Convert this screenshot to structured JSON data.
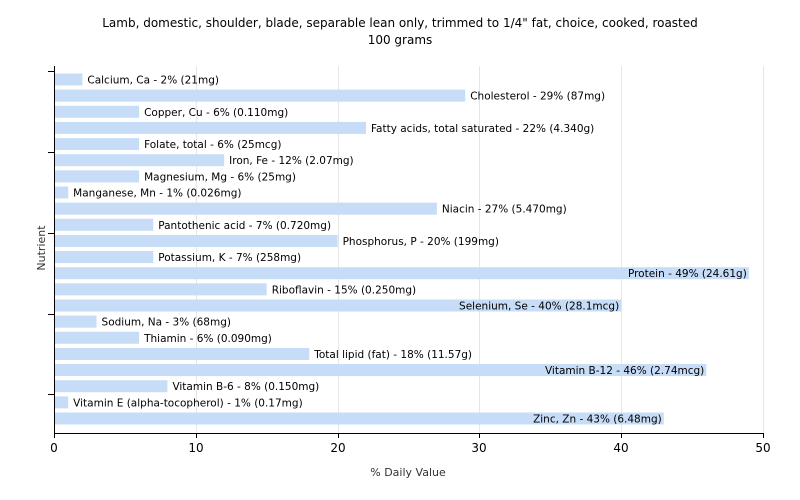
{
  "chart_data": {
    "type": "bar",
    "orientation": "horizontal",
    "title_lines": [
      "Lamb, domestic, shoulder, blade, separable lean only, trimmed to 1/4\" fat, choice, cooked, roasted",
      "100 grams"
    ],
    "xlabel": "% Daily Value",
    "ylabel": "Nutrient",
    "xlim": [
      0,
      50
    ],
    "xticks": [
      0,
      10,
      20,
      30,
      40,
      50
    ],
    "grid": true,
    "bar_color": "#c6dcf7",
    "grid_color": "#e6e6e6",
    "categories": [
      "Calcium, Ca",
      "Cholesterol",
      "Copper, Cu",
      "Fatty acids, total saturated",
      "Folate, total",
      "Iron, Fe",
      "Magnesium, Mg",
      "Manganese, Mn",
      "Niacin",
      "Pantothenic acid",
      "Phosphorus, P",
      "Potassium, K",
      "Protein",
      "Riboflavin",
      "Selenium, Se",
      "Sodium, Na",
      "Thiamin",
      "Total lipid (fat)",
      "Vitamin B-12",
      "Vitamin B-6",
      "Vitamin E (alpha-tocopherol)",
      "Zinc, Zn"
    ],
    "values": [
      2,
      29,
      6,
      22,
      6,
      12,
      6,
      1,
      27,
      7,
      20,
      7,
      49,
      15,
      40,
      3,
      6,
      18,
      46,
      8,
      1,
      43
    ],
    "labels": [
      "Calcium, Ca - 2% (21mg)",
      "Cholesterol - 29% (87mg)",
      "Copper, Cu - 6% (0.110mg)",
      "Fatty acids, total saturated - 22% (4.340g)",
      "Folate, total - 6% (25mcg)",
      "Iron, Fe - 12% (2.07mg)",
      "Magnesium, Mg - 6% (25mg)",
      "Manganese, Mn - 1% (0.026mg)",
      "Niacin - 27% (5.470mg)",
      "Pantothenic acid - 7% (0.720mg)",
      "Phosphorus, P - 20% (199mg)",
      "Potassium, K - 7% (258mg)",
      "Protein - 49% (24.61g)",
      "Riboflavin - 15% (0.250mg)",
      "Selenium, Se - 40% (28.1mcg)",
      "Sodium, Na - 3% (68mg)",
      "Thiamin - 6% (0.090mg)",
      "Total lipid (fat) - 18% (11.57g)",
      "Vitamin B-12 - 46% (2.74mcg)",
      "Vitamin B-6 - 8% (0.150mg)",
      "Vitamin E (alpha-tocopherol) - 1% (0.17mg)",
      "Zinc, Zn - 43% (6.48mg)"
    ]
  }
}
